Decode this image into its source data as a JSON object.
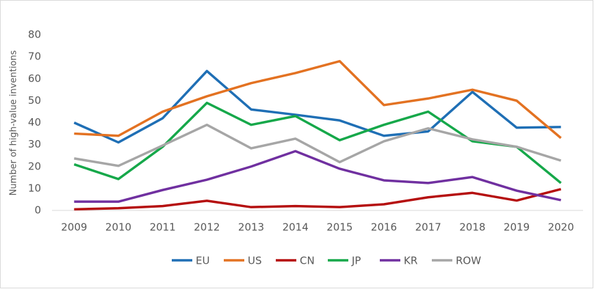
{
  "chart_data": {
    "type": "line",
    "y_label": "Number of high-value inventions",
    "categories": [
      "2009",
      "2010",
      "2011",
      "2012",
      "2013",
      "2014",
      "2015",
      "2016",
      "2017",
      "2018",
      "2019",
      "2020"
    ],
    "series": [
      {
        "name": "EU",
        "color": "#1f6fb5",
        "values": [
          40,
          31,
          42,
          63.5,
          46,
          43.6,
          41,
          34,
          36,
          54,
          37.7,
          38
        ]
      },
      {
        "name": "US",
        "color": "#e37222",
        "values": [
          35,
          34,
          45,
          52,
          58,
          62.6,
          68,
          48,
          51,
          55,
          50,
          33
        ]
      },
      {
        "name": "CN",
        "color": "#b50f0f",
        "values": [
          0.5,
          1,
          2,
          4.4,
          1.5,
          2,
          1.5,
          2.8,
          6,
          8,
          4.5,
          9.7
        ]
      },
      {
        "name": "JP",
        "color": "#16a84a",
        "values": [
          21,
          14.3,
          29,
          49,
          39,
          43,
          32,
          39,
          45,
          31.5,
          29,
          12.5
        ]
      },
      {
        "name": "KR",
        "color": "#7030a0",
        "values": [
          4,
          4,
          9.3,
          14,
          20,
          27,
          19,
          13.7,
          12.5,
          15.2,
          9,
          4.7
        ]
      },
      {
        "name": "ROW",
        "color": "#a6a6a6",
        "values": [
          23.7,
          20.3,
          29.6,
          39,
          28.3,
          32.7,
          22,
          31.5,
          37.4,
          32.4,
          29,
          22.7
        ]
      }
    ],
    "ylim": [
      0,
      80
    ],
    "yticks": [
      0,
      10,
      20,
      30,
      40,
      50,
      60,
      70,
      80
    ],
    "grid": false
  }
}
